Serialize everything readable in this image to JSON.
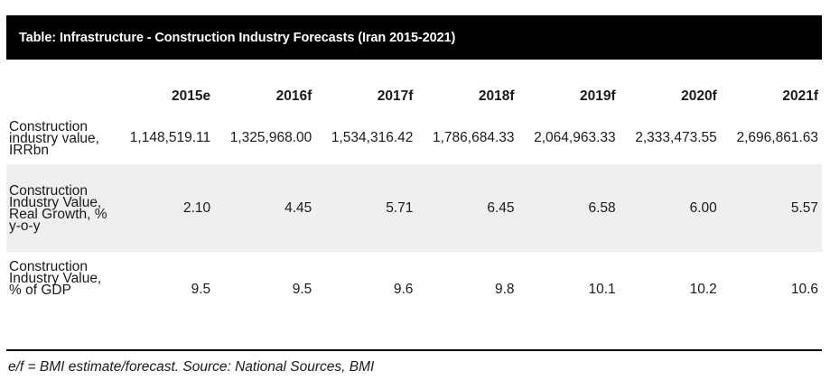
{
  "table": {
    "title": "Table: Infrastructure - Construction Industry Forecasts (Iran 2015-2021)",
    "columns": [
      "2015e",
      "2016f",
      "2017f",
      "2018f",
      "2019f",
      "2020f",
      "2021f"
    ],
    "rows": [
      {
        "label": "Construction industry value, IRRbn",
        "values": [
          "1,148,519.11",
          "1,325,968.00",
          "1,534,316.42",
          "1,786,684.33",
          "2,064,963.33",
          "2,333,473.55",
          "2,696,861.63"
        ]
      },
      {
        "label": "Construction Industry Value, Real Growth, % y-o-y",
        "values": [
          "2.10",
          "4.45",
          "5.71",
          "6.45",
          "6.58",
          "6.00",
          "5.57"
        ]
      },
      {
        "label": "Construction Industry Value, % of GDP",
        "values": [
          "9.5",
          "9.5",
          "9.6",
          "9.8",
          "10.1",
          "10.2",
          "10.6"
        ]
      }
    ],
    "footnote": "e/f = BMI estimate/forecast. Source: National Sources, BMI"
  }
}
